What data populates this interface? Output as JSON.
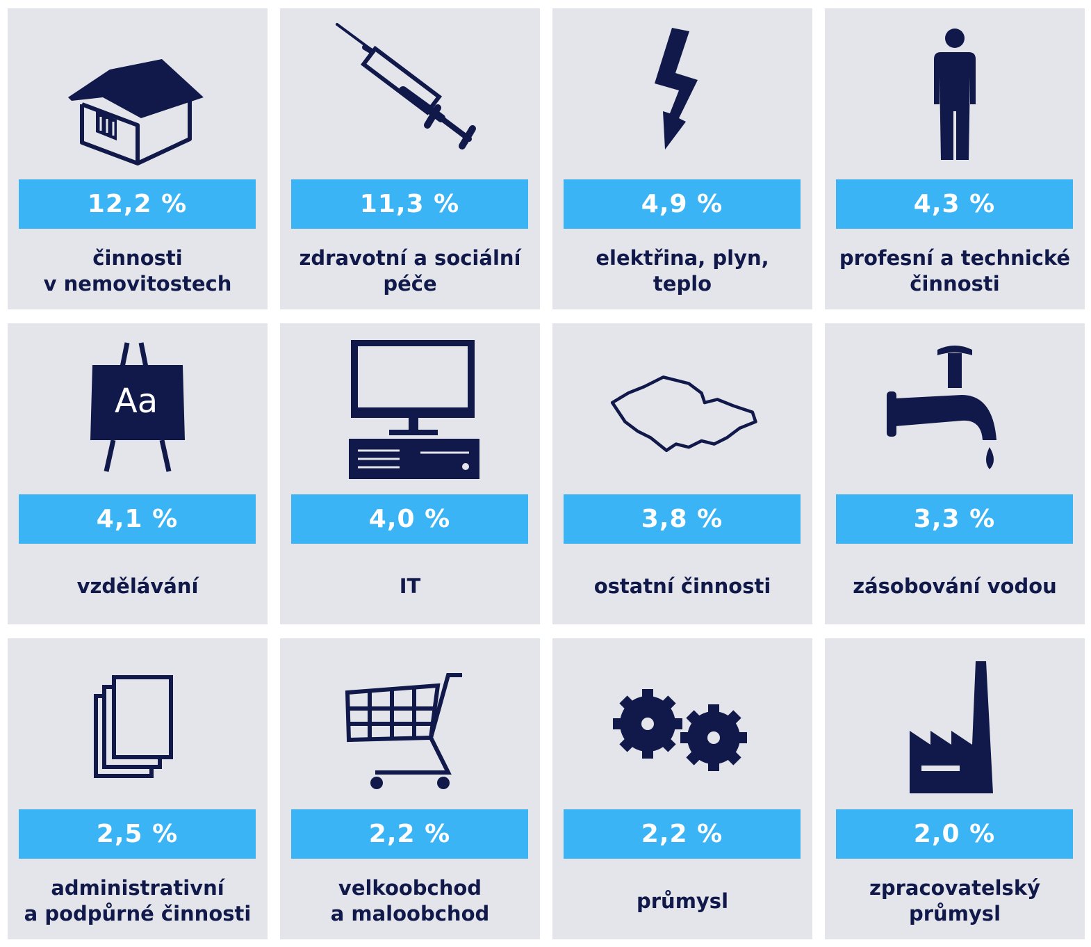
{
  "colors": {
    "card": "#e4e5ea",
    "accent": "#3ab4f5",
    "ink": "#10194a"
  },
  "cards": [
    {
      "icon": "house-icon",
      "value": "12,2 %",
      "label": [
        "činnosti",
        "v nemovitostech"
      ]
    },
    {
      "icon": "syringe-icon",
      "value": "11,3 %",
      "label": [
        "zdravotní a sociální",
        "péče"
      ]
    },
    {
      "icon": "lightning-icon",
      "value": "4,9 %",
      "label": [
        "elektřina, plyn,",
        "teplo"
      ]
    },
    {
      "icon": "person-icon",
      "value": "4,3 %",
      "label": [
        "profesní a technické",
        "činnosti"
      ]
    },
    {
      "icon": "blackboard-icon",
      "value": "4,1 %",
      "label": [
        "vzdělávání"
      ]
    },
    {
      "icon": "computer-icon",
      "value": "4,0 %",
      "label": [
        "IT"
      ]
    },
    {
      "icon": "czech-map-icon",
      "value": "3,8 %",
      "label": [
        "ostatní činnosti"
      ]
    },
    {
      "icon": "water-tap-icon",
      "value": "3,3 %",
      "label": [
        "zásobování vodou"
      ]
    },
    {
      "icon": "documents-icon",
      "value": "2,5 %",
      "label": [
        "administrativní",
        "a podpůrné činnosti"
      ]
    },
    {
      "icon": "shopping-cart-icon",
      "value": "2,2 %",
      "label": [
        "velkoobchod",
        "a maloobchod"
      ]
    },
    {
      "icon": "gears-icon",
      "value": "2,2 %",
      "label": [
        "průmysl"
      ]
    },
    {
      "icon": "factory-icon",
      "value": "2,0 %",
      "label": [
        "zpracovatelský",
        "průmysl"
      ]
    }
  ],
  "blackboard_text": "Aa"
}
